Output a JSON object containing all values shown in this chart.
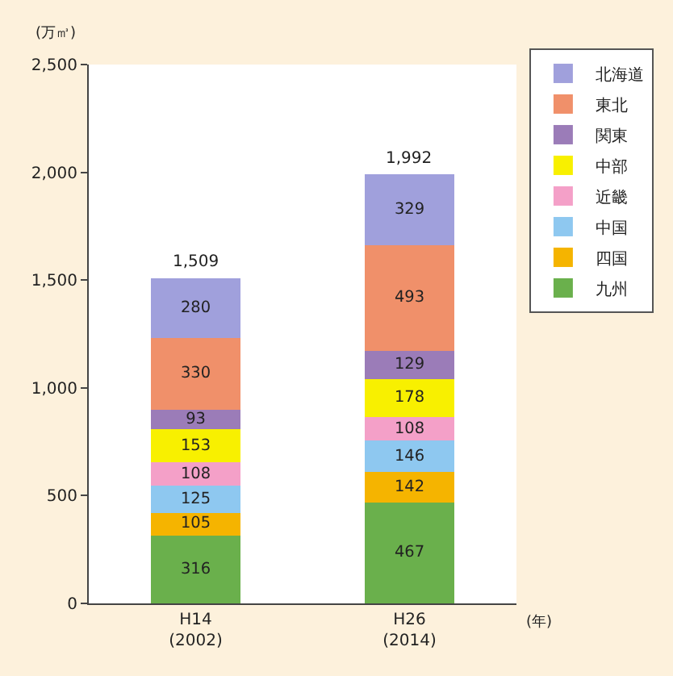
{
  "chart_data": {
    "type": "bar",
    "stacked": true,
    "categories": [
      "H14\n(2002)",
      "H26\n(2014)"
    ],
    "series": [
      {
        "name": "九州",
        "color": "#6ab04c",
        "values": [
          316,
          467
        ]
      },
      {
        "name": "四国",
        "color": "#f5b400",
        "values": [
          105,
          142
        ]
      },
      {
        "name": "中国",
        "color": "#8ec8f0",
        "values": [
          125,
          146
        ]
      },
      {
        "name": "近畿",
        "color": "#f4a0c8",
        "values": [
          108,
          108
        ]
      },
      {
        "name": "中部",
        "color": "#f8f000",
        "values": [
          153,
          178
        ]
      },
      {
        "name": "関東",
        "color": "#9b7cb8",
        "values": [
          93,
          129
        ]
      },
      {
        "name": "東北",
        "color": "#f0906a",
        "values": [
          330,
          493
        ]
      },
      {
        "name": "北海道",
        "color": "#a0a0dc",
        "values": [
          280,
          329
        ]
      }
    ],
    "totals": [
      "1,509",
      "1,992"
    ],
    "data_labels": true,
    "ylabel": "(万㎥)",
    "xlabel": "(年)",
    "ylim": [
      0,
      2500
    ],
    "yticks": [
      0,
      500,
      {
        "value": 1000,
        "label": "1,000"
      },
      {
        "value": 1500,
        "label": "1,500"
      },
      {
        "value": 2000,
        "label": "2,000"
      },
      {
        "value": 2500,
        "label": "2,500"
      }
    ],
    "legend": "top right"
  }
}
